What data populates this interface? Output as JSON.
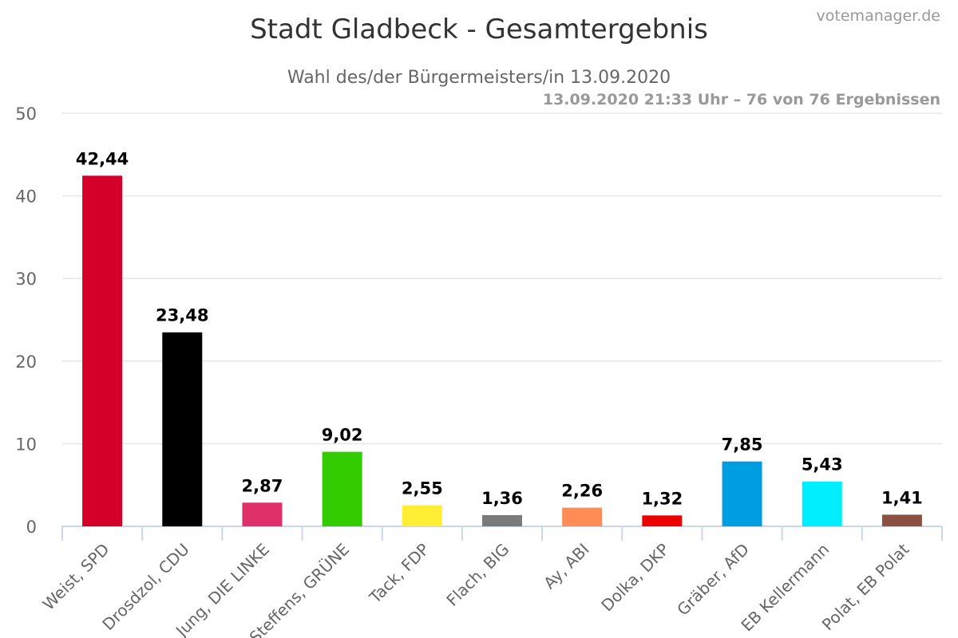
{
  "chart_data": {
    "type": "bar",
    "title": "Stadt Gladbeck - Gesamtergebnis",
    "subtitle": "Wahl des/der Bürgermeisters/in 13.09.2020",
    "categories": [
      "Weist, SPD",
      "Drosdzol, CDU",
      "Jung, DIE LINKE",
      "Steffens, GRÜNE",
      "Tack, FDP",
      "Flach, BIG",
      "Ay, ABI",
      "Dolka, DKP",
      "Gräber, AfD",
      "EB Kellermann",
      "Polat, EB Polat"
    ],
    "values": [
      42.44,
      23.48,
      2.87,
      9.02,
      2.55,
      1.36,
      2.26,
      1.32,
      7.85,
      5.43,
      1.41
    ],
    "value_labels": [
      "42,44",
      "23,48",
      "2,87",
      "9,02",
      "2,55",
      "1,36",
      "2,26",
      "1,32",
      "7,85",
      "5,43",
      "1,41"
    ],
    "colors": [
      "#d5002a",
      "#000000",
      "#e0306a",
      "#33cc00",
      "#ffee33",
      "#7a7a7a",
      "#ff8c55",
      "#ee0000",
      "#009ee0",
      "#00eeff",
      "#8b5040"
    ],
    "ylim": [
      0,
      50
    ],
    "yticks": [
      "0",
      "10",
      "20",
      "30",
      "40",
      "50"
    ],
    "grid": true,
    "legend": "none"
  },
  "credits": {
    "timestamp": "13.09.2020 21:33 Uhr – 76 von 76 Ergebnissen",
    "source": "votemanager.de"
  }
}
